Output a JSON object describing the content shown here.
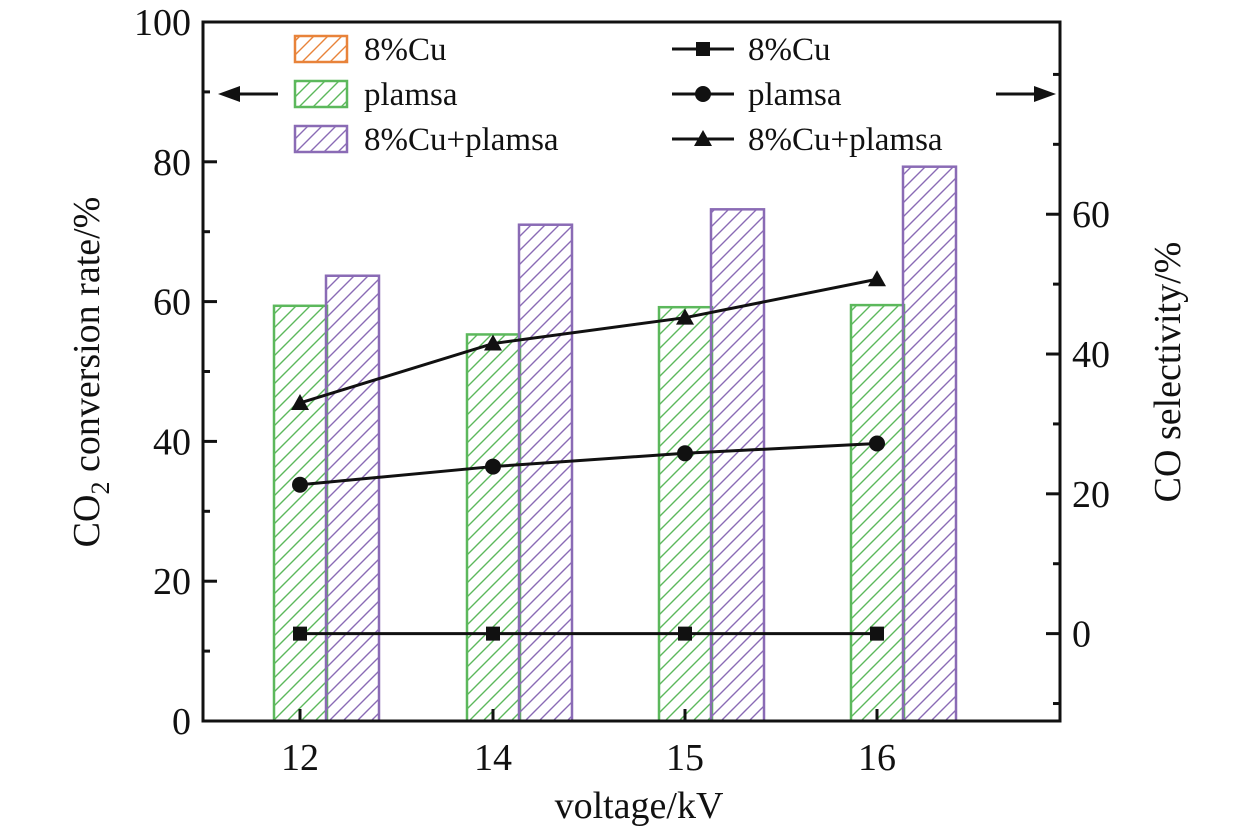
{
  "chart_data": {
    "type": "bar",
    "xlabel": "voltage/kV",
    "ylabel_left": {
      "main": "CO",
      "sub": "2",
      "rest": " conversion rate/%"
    },
    "ylabel_right": "CO selectivity/%",
    "categories": [
      "12",
      "14",
      "15",
      "16"
    ],
    "ylim_left": [
      0,
      100
    ],
    "yticks_left": [
      0,
      20,
      40,
      60,
      80,
      100
    ],
    "ylim_right": [
      -12.5,
      87.5
    ],
    "yticks_right": [
      0,
      20,
      40,
      60
    ],
    "bar_series": [
      {
        "name": "8%Cu",
        "color": "#e8833a",
        "values": [
          0,
          0,
          0,
          0
        ]
      },
      {
        "name": "plamsa",
        "color": "#5cb85c",
        "values": [
          59.4,
          55.3,
          59.2,
          59.5
        ]
      },
      {
        "name": "8%Cu+plamsa",
        "color": "#8a6bb5",
        "values": [
          63.7,
          71,
          73.2,
          79.3
        ]
      }
    ],
    "line_series": [
      {
        "name": "8%Cu",
        "marker": "square",
        "values": [
          0,
          0,
          0,
          0
        ]
      },
      {
        "name": "plamsa",
        "marker": "circle",
        "values": [
          21.3,
          23.9,
          25.8,
          27.2
        ]
      },
      {
        "name": "8%Cu+plamsa",
        "marker": "triangle",
        "values": [
          33,
          41.5,
          45.2,
          50.7
        ]
      }
    ],
    "annotations": [
      "left-arrow-indicating-left-axis",
      "right-arrow-indicating-right-axis"
    ],
    "legend_placement": "top-inside"
  }
}
